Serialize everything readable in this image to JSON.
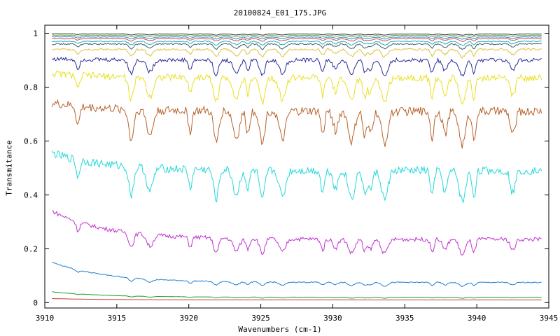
{
  "chart_data": {
    "type": "line",
    "title": "20100824_E01_175.JPG",
    "xlabel": "Wavenumbers (cm-1)",
    "ylabel": "Transmitance",
    "xlim": [
      3910,
      3945
    ],
    "ylim": [
      -0.02,
      1.03
    ],
    "xticks": [
      "3910",
      "3915",
      "3920",
      "3925",
      "3930",
      "3935",
      "3940",
      "3945"
    ],
    "yticks": [
      "0",
      "0.2",
      "0.4",
      "0.6",
      "0.8",
      "1"
    ],
    "grid": false,
    "absorption_lines_cm1": [
      3912.3,
      3916.0,
      3917.3,
      3920.1,
      3921.9,
      3923.3,
      3924.1,
      3925.1,
      3926.5,
      3929.3,
      3930.2,
      3931.3,
      3932.2,
      3932.6,
      3933.6,
      3936.9,
      3937.8,
      3939.0,
      3939.8,
      3942.5
    ],
    "series": [
      {
        "color": "#c0392b",
        "start": 0.015,
        "baseline": 0.01,
        "dip_depth": 0.0
      },
      {
        "color": "#1f9a2e",
        "start": 0.04,
        "baseline": 0.02,
        "dip_depth": 0.004
      },
      {
        "color": "#1f7fd0",
        "start": 0.15,
        "baseline": 0.075,
        "dip_depth": 0.015
      },
      {
        "color": "#c030d0",
        "start": 0.34,
        "baseline": 0.235,
        "dip_depth": 0.06
      },
      {
        "color": "#22d8d8",
        "start": 0.555,
        "baseline": 0.49,
        "dip_depth": 0.12
      },
      {
        "color": "#b8612a",
        "start": 0.74,
        "baseline": 0.71,
        "dip_depth": 0.13
      },
      {
        "color": "#e8e020",
        "start": 0.85,
        "baseline": 0.835,
        "dip_depth": 0.1
      },
      {
        "color": "#2a2a9a",
        "start": 0.905,
        "baseline": 0.9,
        "dip_depth": 0.06
      },
      {
        "color": "#e0c040",
        "start": 0.94,
        "baseline": 0.94,
        "dip_depth": 0.03
      },
      {
        "color": "#3a6070",
        "start": 0.96,
        "baseline": 0.96,
        "dip_depth": 0.02
      },
      {
        "color": "#20b0b0",
        "start": 0.97,
        "baseline": 0.97,
        "dip_depth": 0.015
      },
      {
        "color": "#c05060",
        "start": 0.98,
        "baseline": 0.98,
        "dip_depth": 0.01
      },
      {
        "color": "#4080c0",
        "start": 0.987,
        "baseline": 0.986,
        "dip_depth": 0.008
      },
      {
        "color": "#60b040",
        "start": 0.993,
        "baseline": 0.992,
        "dip_depth": 0.006
      },
      {
        "color": "#303030",
        "start": 0.998,
        "baseline": 0.997,
        "dip_depth": 0.004
      }
    ]
  }
}
